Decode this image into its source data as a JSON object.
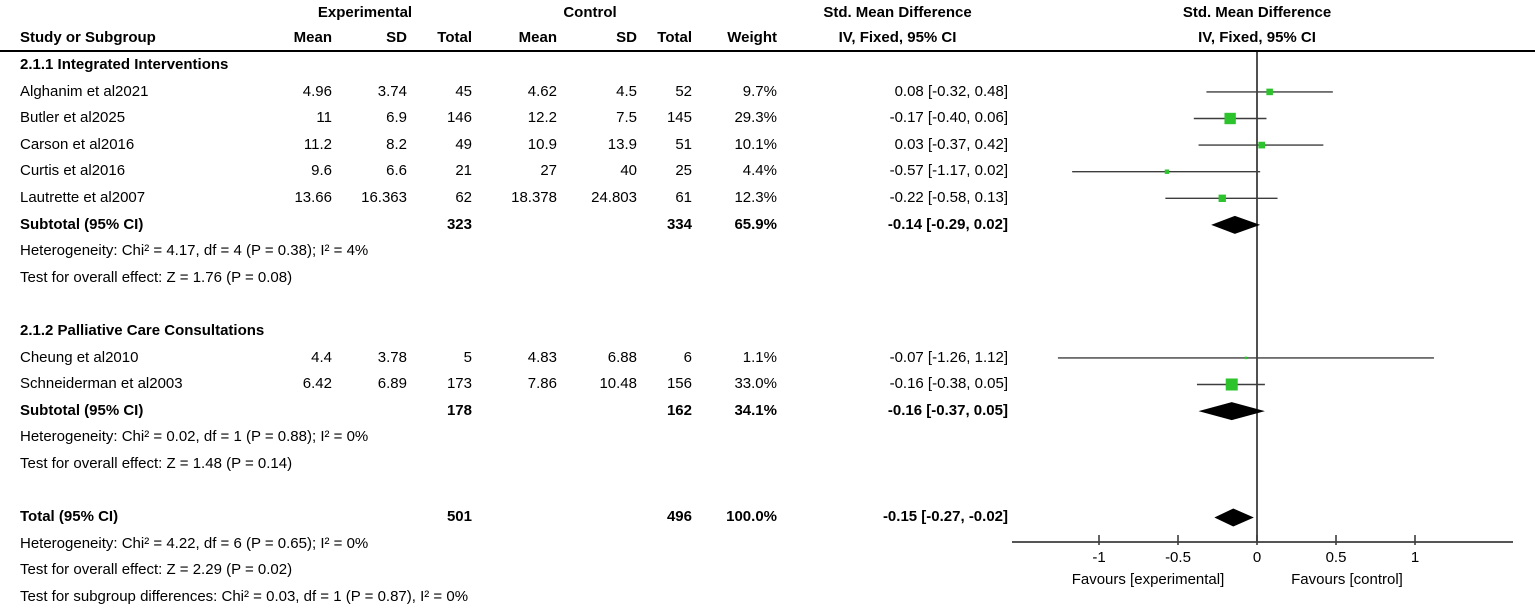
{
  "header": {
    "group_experimental": "Experimental",
    "group_control": "Control",
    "effect_title": "Std. Mean Difference",
    "col_study": "Study or Subgroup",
    "col_mean": "Mean",
    "col_sd": "SD",
    "col_total": "Total",
    "col_weight": "Weight",
    "effect_subtitle": "IV, Fixed, 95% CI",
    "plot_title": "Std. Mean Difference",
    "plot_subtitle": "IV, Fixed, 95% CI"
  },
  "colors": {
    "marker_green": "#2cc32c",
    "diamond_black": "#000000",
    "line_gray": "#3d3d3d",
    "text_black": "#000000"
  },
  "chart_data": {
    "type": "scatter",
    "subtype": "forest-plot",
    "effect_measure": "Std. Mean Difference, IV, Fixed, 95% CI",
    "xticks": [
      -1,
      -0.5,
      0,
      0.5,
      1
    ],
    "xtick_labels": [
      "-1",
      "-0.5",
      "0",
      "0.5",
      "1"
    ],
    "xlim": [
      -1.55,
      1.62
    ],
    "favours_left": "Favours [experimental]",
    "favours_right": "Favours [control]",
    "rows": [
      {
        "type": "subgroup",
        "label": "2.1.1 Integrated Interventions"
      },
      {
        "type": "study",
        "study": "Alghanim et al2021",
        "e_mean": "4.96",
        "e_sd": "3.74",
        "e_total": "45",
        "c_mean": "4.62",
        "c_sd": "4.5",
        "c_total": "52",
        "weight": "9.7%",
        "ci_text": "0.08 [-0.32, 0.48]",
        "est": 0.08,
        "lo": -0.32,
        "hi": 0.48,
        "w": 9.7
      },
      {
        "type": "study",
        "study": "Butler et al2025",
        "e_mean": "11",
        "e_sd": "6.9",
        "e_total": "146",
        "c_mean": "12.2",
        "c_sd": "7.5",
        "c_total": "145",
        "weight": "29.3%",
        "ci_text": "-0.17 [-0.40, 0.06]",
        "est": -0.17,
        "lo": -0.4,
        "hi": 0.06,
        "w": 29.3
      },
      {
        "type": "study",
        "study": "Carson et al2016",
        "e_mean": "11.2",
        "e_sd": "8.2",
        "e_total": "49",
        "c_mean": "10.9",
        "c_sd": "13.9",
        "c_total": "51",
        "weight": "10.1%",
        "ci_text": "0.03 [-0.37, 0.42]",
        "est": 0.03,
        "lo": -0.37,
        "hi": 0.42,
        "w": 10.1
      },
      {
        "type": "study",
        "study": "Curtis et al2016",
        "e_mean": "9.6",
        "e_sd": "6.6",
        "e_total": "21",
        "c_mean": "27",
        "c_sd": "40",
        "c_total": "25",
        "weight": "4.4%",
        "ci_text": "-0.57 [-1.17, 0.02]",
        "est": -0.57,
        "lo": -1.17,
        "hi": 0.02,
        "w": 4.4
      },
      {
        "type": "study",
        "study": "Lautrette et al2007",
        "e_mean": "13.66",
        "e_sd": "16.363",
        "e_total": "62",
        "c_mean": "18.378",
        "c_sd": "24.803",
        "c_total": "61",
        "weight": "12.3%",
        "ci_text": "-0.22 [-0.58, 0.13]",
        "est": -0.22,
        "lo": -0.58,
        "hi": 0.13,
        "w": 12.3
      },
      {
        "type": "subtotal",
        "study": "Subtotal (95% CI)",
        "e_total": "323",
        "c_total": "334",
        "weight": "65.9%",
        "ci_text": "-0.14 [-0.29, 0.02]",
        "est": -0.14,
        "lo": -0.29,
        "hi": 0.02
      },
      {
        "type": "note",
        "label": "Heterogeneity: Chi² = 4.17, df = 4 (P = 0.38); I² = 4%"
      },
      {
        "type": "note",
        "label": "Test for overall effect: Z = 1.76 (P = 0.08)"
      },
      {
        "type": "blank"
      },
      {
        "type": "subgroup",
        "label": "2.1.2 Palliative Care Consultations"
      },
      {
        "type": "study",
        "study": "Cheung et al2010",
        "e_mean": "4.4",
        "e_sd": "3.78",
        "e_total": "5",
        "c_mean": "4.83",
        "c_sd": "6.88",
        "c_total": "6",
        "weight": "1.1%",
        "ci_text": "-0.07 [-1.26, 1.12]",
        "est": -0.07,
        "lo": -1.26,
        "hi": 1.12,
        "w": 1.1
      },
      {
        "type": "study",
        "study": "Schneiderman et al2003",
        "e_mean": "6.42",
        "e_sd": "6.89",
        "e_total": "173",
        "c_mean": "7.86",
        "c_sd": "10.48",
        "c_total": "156",
        "weight": "33.0%",
        "ci_text": "-0.16 [-0.38, 0.05]",
        "est": -0.16,
        "lo": -0.38,
        "hi": 0.05,
        "w": 33.0
      },
      {
        "type": "subtotal",
        "study": "Subtotal (95% CI)",
        "e_total": "178",
        "c_total": "162",
        "weight": "34.1%",
        "ci_text": "-0.16 [-0.37, 0.05]",
        "est": -0.16,
        "lo": -0.37,
        "hi": 0.05
      },
      {
        "type": "note",
        "label": "Heterogeneity: Chi² = 0.02, df = 1 (P = 0.88); I² = 0%"
      },
      {
        "type": "note",
        "label": "Test for overall effect: Z = 1.48 (P = 0.14)"
      },
      {
        "type": "blank"
      },
      {
        "type": "total",
        "study": "Total (95% CI)",
        "e_total": "501",
        "c_total": "496",
        "weight": "100.0%",
        "ci_text": "-0.15 [-0.27, -0.02]",
        "est": -0.15,
        "lo": -0.27,
        "hi": -0.02
      },
      {
        "type": "note",
        "label": "Heterogeneity: Chi² = 4.22, df = 6 (P = 0.65); I² = 0%"
      },
      {
        "type": "note",
        "label": "Test for overall effect: Z = 2.29 (P = 0.02)"
      },
      {
        "type": "note",
        "label": "Test for subgroup differences: Chi² = 0.03, df = 1 (P = 0.87), I² = 0%"
      }
    ]
  }
}
